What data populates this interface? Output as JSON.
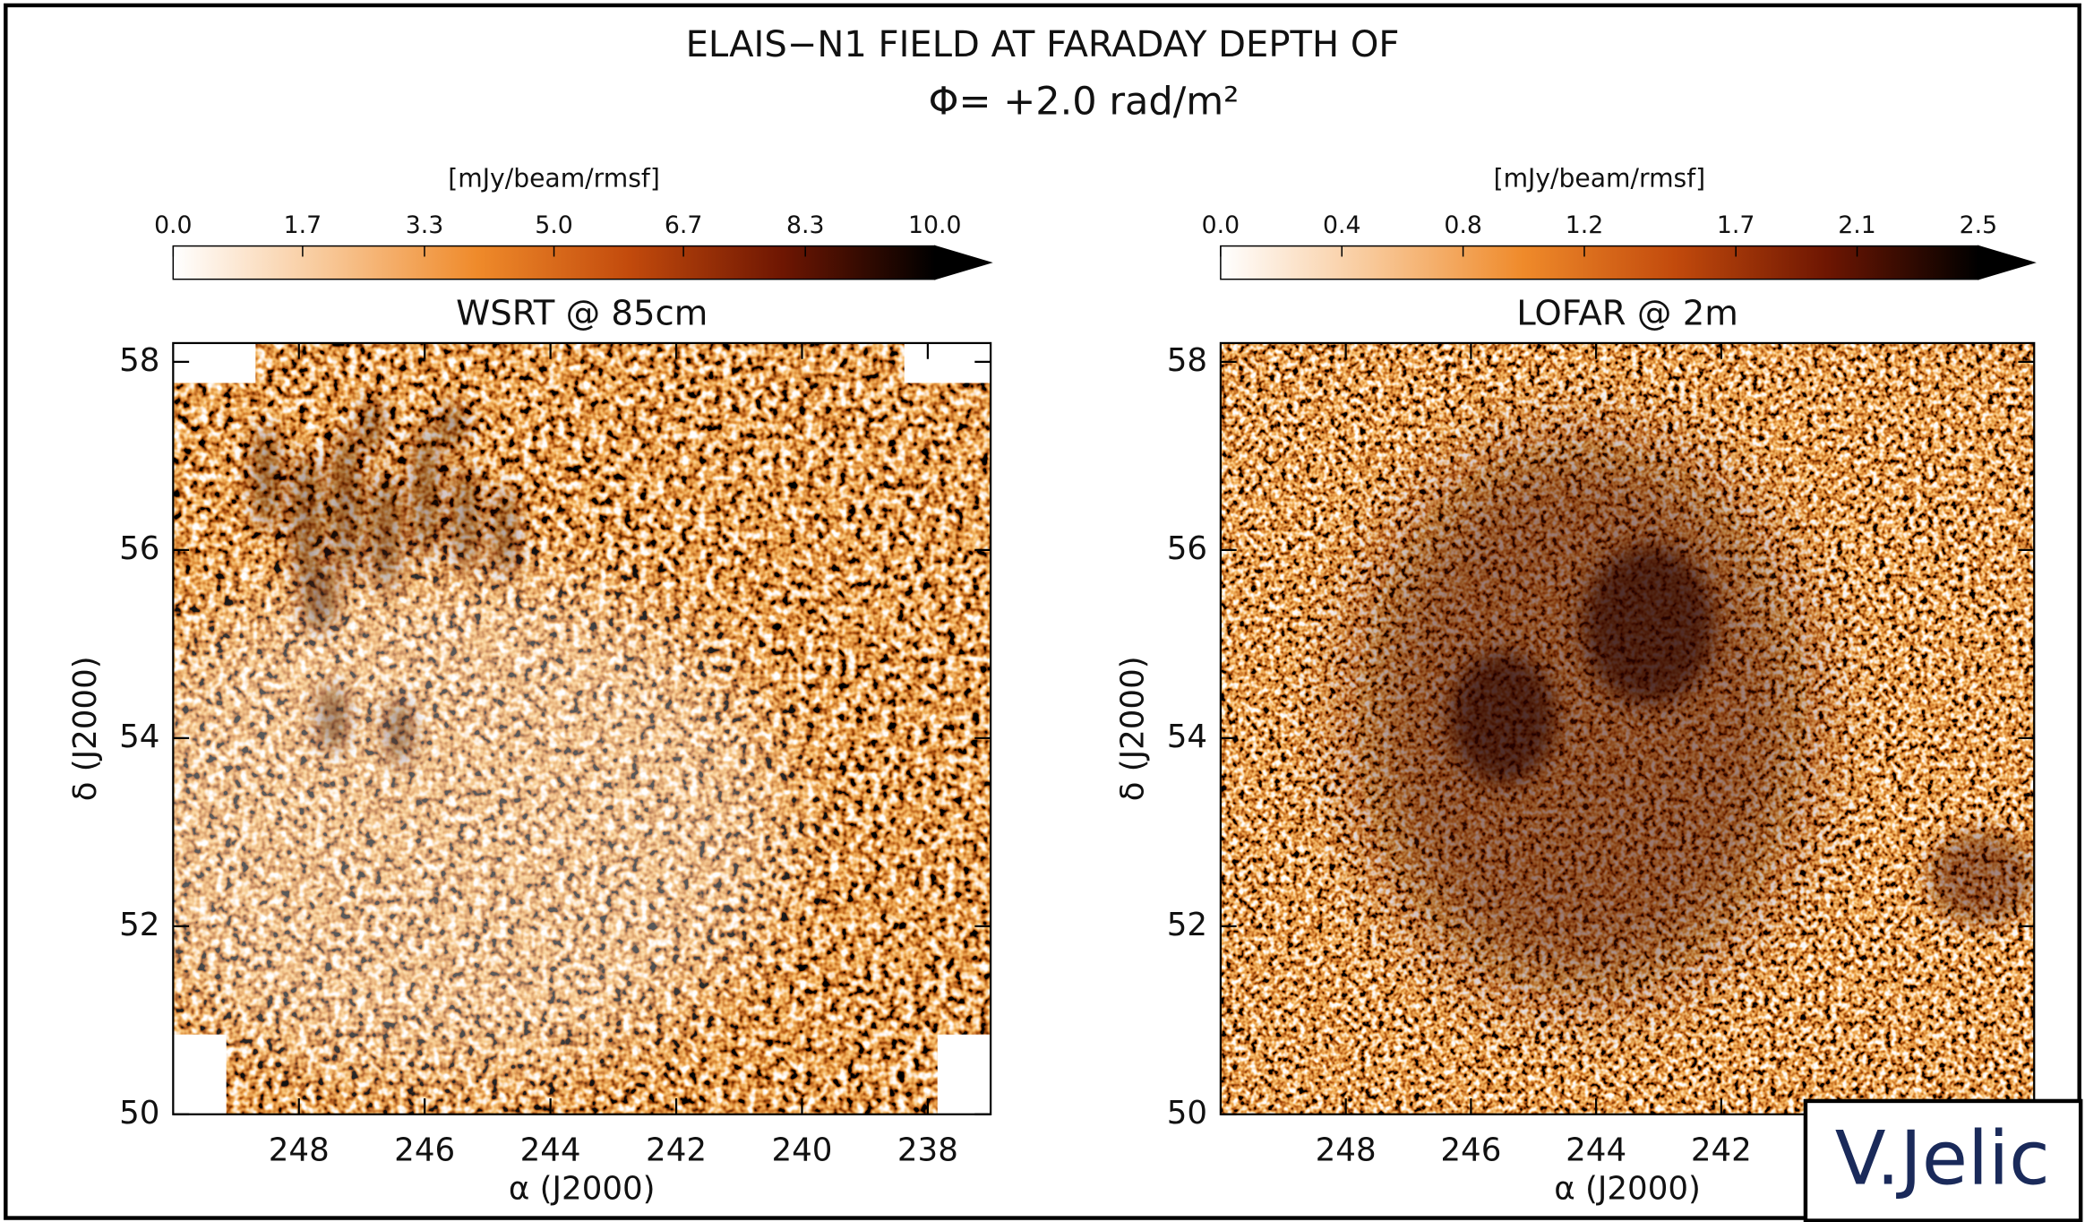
{
  "title": "ELAIS−N1 FIELD AT FARADAY DEPTH OF",
  "subtitle": "Φ=  +2.0 rad/m²",
  "credit": "V.Jelic",
  "chart_data": [
    {
      "type": "image",
      "title": "WSRT @ 85cm",
      "xlabel": "α (J2000)",
      "ylabel": "δ (J2000)",
      "xlim": [
        250,
        237
      ],
      "xticks": [
        248,
        246,
        244,
        242,
        240,
        238
      ],
      "ylim": [
        50,
        58.2
      ],
      "yticks": [
        50,
        52,
        54,
        56,
        58
      ],
      "colorbar": {
        "label": "[mJy/beam/rmsf]",
        "lim": [
          0,
          10
        ],
        "ticks": [
          {
            "value": 0,
            "label": "0.0"
          },
          1.7,
          3.3,
          {
            "value": 5,
            "label": "5.0"
          },
          6.7,
          8.3,
          {
            "value": 10,
            "label": "10.0"
          }
        ]
      },
      "colormap": [
        "#ffffff",
        "#f8c898",
        "#ef8a2a",
        "#c24a0c",
        "#6e1602",
        "#000000"
      ]
    },
    {
      "type": "image",
      "title": "LOFAR @ 2m",
      "xlabel": "α (J2000)",
      "ylabel": "δ (J2000)",
      "xlim": [
        250,
        237
      ],
      "xticks": [
        248,
        246,
        244,
        242
      ],
      "ylim": [
        50,
        58.2
      ],
      "yticks": [
        50,
        52,
        54,
        56,
        58
      ],
      "colorbar": {
        "label": "[mJy/beam/rmsf]",
        "lim": [
          0,
          2.5
        ],
        "ticks": [
          {
            "value": 0,
            "label": "0.0"
          },
          0.4,
          0.8,
          1.2,
          1.7,
          2.1,
          2.5
        ]
      },
      "colormap": [
        "#ffffff",
        "#f8c898",
        "#ef8a2a",
        "#c24a0c",
        "#6e1602",
        "#000000"
      ]
    }
  ]
}
